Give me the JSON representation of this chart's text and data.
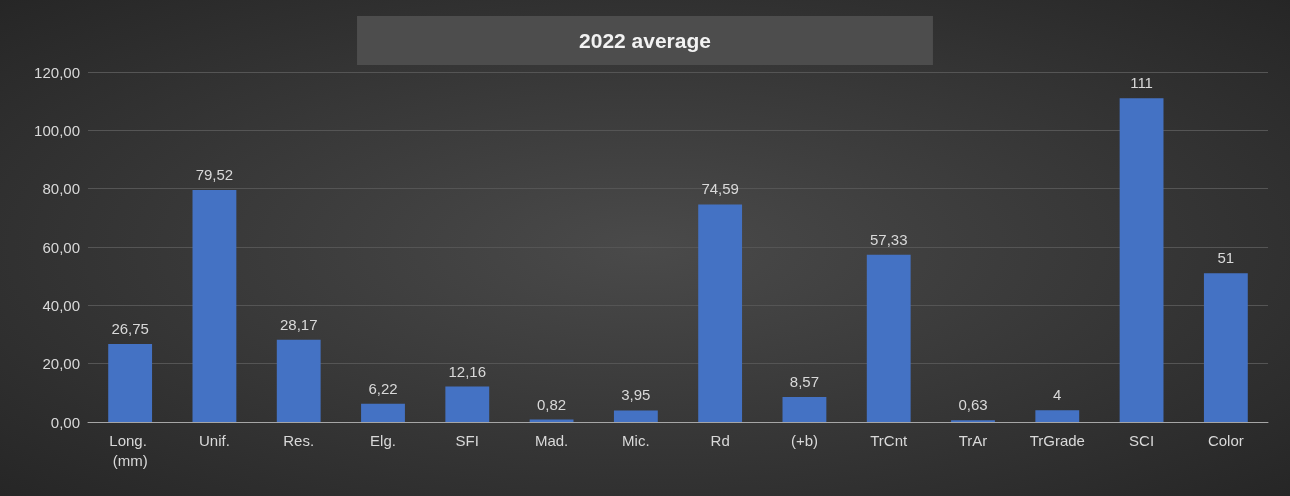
{
  "chart_data": {
    "type": "bar",
    "title": "2022 average",
    "categories": [
      "Long. (mm)",
      "Unif.",
      "Res.",
      "Elg.",
      "SFI",
      "Mad.",
      "Mic.",
      "Rd",
      "(+b)",
      "TrCnt",
      "TrAr",
      "TrGrade",
      "SCI",
      "Color"
    ],
    "values": [
      26.75,
      79.52,
      28.17,
      6.22,
      12.16,
      0.82,
      3.95,
      74.59,
      8.57,
      57.33,
      0.63,
      4,
      111,
      51
    ],
    "value_labels": [
      "26,75",
      "79,52",
      "28,17",
      "6,22",
      "12,16",
      "0,82",
      "3,95",
      "74,59",
      "8,57",
      "57,33",
      "0,63",
      "4",
      "111",
      "51"
    ],
    "color": "#4472c4",
    "ylim": [
      0,
      120
    ],
    "yticks": [
      {
        "value": 0,
        "label": "0,00"
      },
      {
        "value": 20,
        "label": "20,00"
      },
      {
        "value": 40,
        "label": "40,00"
      },
      {
        "value": 60,
        "label": "60,00"
      },
      {
        "value": 80,
        "label": "80,00"
      },
      {
        "value": 100,
        "label": "100,00"
      },
      {
        "value": 120,
        "label": "120,00"
      }
    ],
    "grid": "y"
  }
}
